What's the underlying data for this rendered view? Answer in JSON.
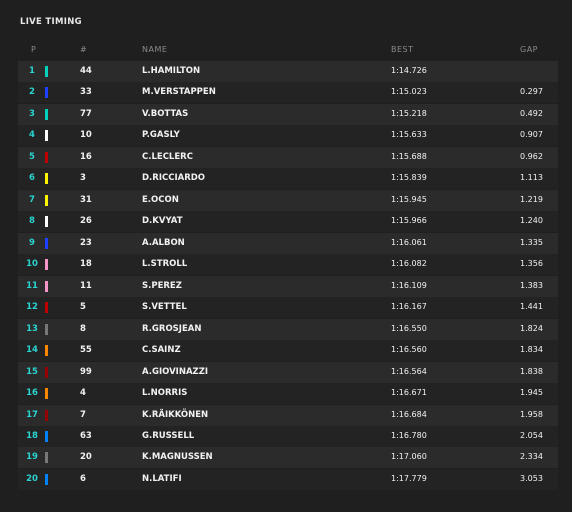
{
  "header": {
    "title": "LIVE TIMING"
  },
  "table": {
    "columns": [
      "P",
      "#",
      "NAME",
      "BEST",
      "GAP"
    ],
    "team_colors": [
      "#00d2be",
      "#1e41ff",
      "#00d2be",
      "#ffffff",
      "#c00000",
      "#fff500",
      "#fff500",
      "#ffffff",
      "#1e41ff",
      "#f596c8",
      "#f596c8",
      "#c00000",
      "#787878",
      "#ff8700",
      "#960000",
      "#ff8700",
      "#960000",
      "#0082fa",
      "#787878",
      "#0082fa"
    ],
    "rows": [
      {
        "pos": 1,
        "num": 44,
        "name": "L.HAMILTON",
        "best": "1:14.726"
      },
      {
        "pos": 2,
        "num": 33,
        "name": "M.VERSTAPPEN",
        "best": "1:15.023",
        "gap": "0.297"
      },
      {
        "pos": 3,
        "num": 77,
        "name": "V.BOTTAS",
        "best": "1:15.218",
        "gap": "0.492"
      },
      {
        "pos": 4,
        "num": 10,
        "name": "P.GASLY",
        "best": "1:15.633",
        "gap": "0.907"
      },
      {
        "pos": 5,
        "num": 16,
        "name": "C.LECLERC",
        "best": "1:15.688",
        "gap": "0.962"
      },
      {
        "pos": 6,
        "num": 3,
        "name": "D.RICCIARDO",
        "best": "1:15.839",
        "gap": "1.113"
      },
      {
        "pos": 7,
        "num": 31,
        "name": "E.OCON",
        "best": "1:15.945",
        "gap": "1.219"
      },
      {
        "pos": 8,
        "num": 26,
        "name": "D.KVYAT",
        "best": "1:15.966",
        "gap": "1.240"
      },
      {
        "pos": 9,
        "num": 23,
        "name": "A.ALBON",
        "best": "1:16.061",
        "gap": "1.335"
      },
      {
        "pos": 10,
        "num": 18,
        "name": "L.STROLL",
        "best": "1:16.082",
        "gap": "1.356"
      },
      {
        "pos": 11,
        "num": 11,
        "name": "S.PEREZ",
        "best": "1:16.109",
        "gap": "1.383"
      },
      {
        "pos": 12,
        "num": 5,
        "name": "S.VETTEL",
        "best": "1:16.167",
        "gap": "1.441"
      },
      {
        "pos": 13,
        "num": 8,
        "name": "R.GROSJEAN",
        "best": "1:16.550",
        "gap": "1.824"
      },
      {
        "pos": 14,
        "num": 55,
        "name": "C.SAINZ",
        "best": "1:16.560",
        "gap": "1.834"
      },
      {
        "pos": 15,
        "num": 99,
        "name": "A.GIOVINAZZI",
        "best": "1:16.564",
        "gap": "1.838"
      },
      {
        "pos": 16,
        "num": 4,
        "name": "L.NORRIS",
        "best": "1:16.671",
        "gap": "1.945"
      },
      {
        "pos": 17,
        "num": 7,
        "name": "K.RÄIKKÖNEN",
        "best": "1:16.684",
        "gap": "1.958"
      },
      {
        "pos": 18,
        "num": 63,
        "name": "G.RUSSELL",
        "best": "1:16.780",
        "gap": "2.054"
      },
      {
        "pos": 19,
        "num": 20,
        "name": "K.MAGNUSSEN",
        "best": "1:17.060",
        "gap": "2.334"
      },
      {
        "pos": 20,
        "num": 6,
        "name": "N.LATIFI",
        "best": "1:17.779",
        "gap": "3.053"
      }
    ]
  }
}
